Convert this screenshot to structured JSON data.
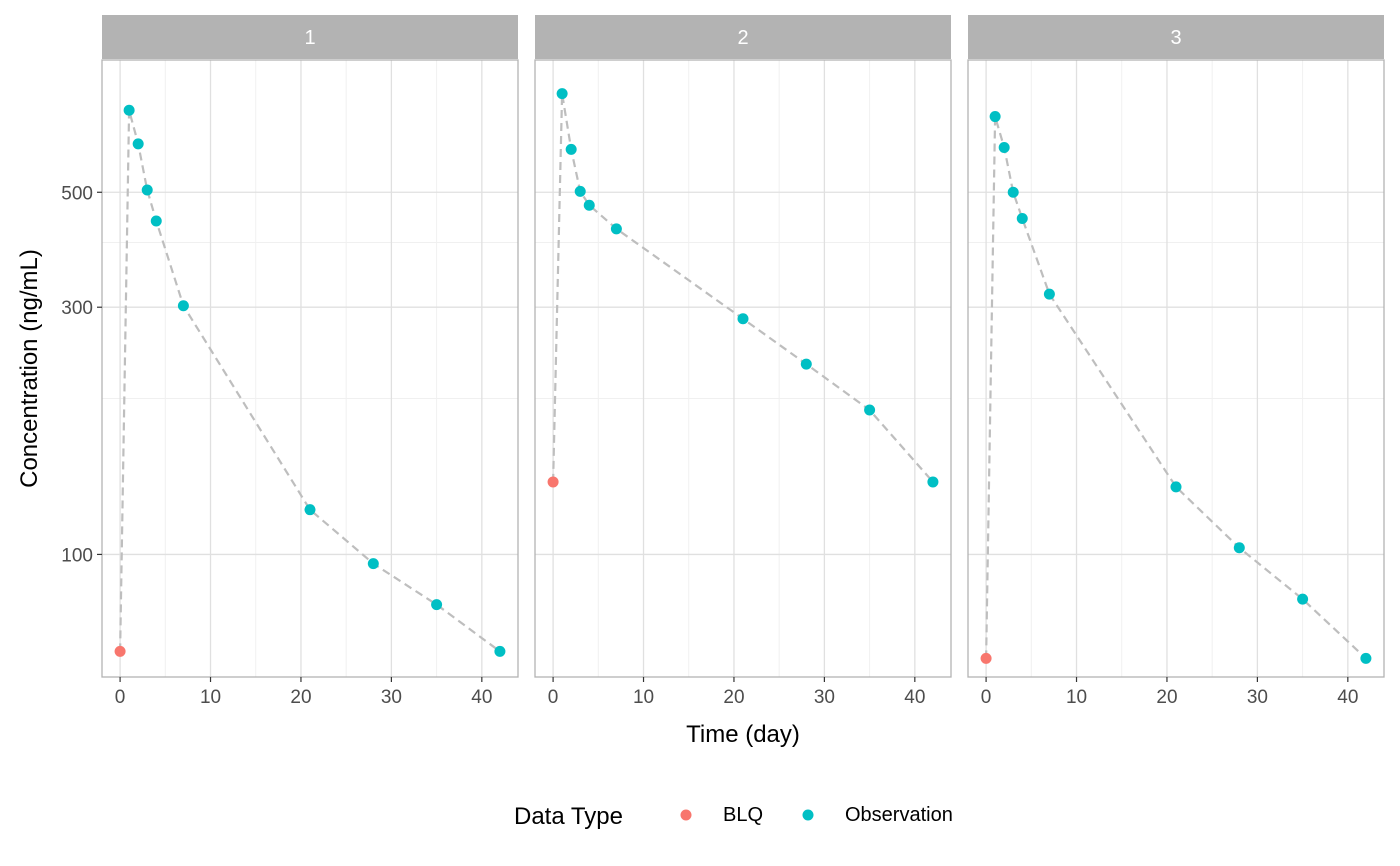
{
  "chart_data": {
    "type": "scatter",
    "xlabel": "Time (day)",
    "ylabel": "Concentration (ng/mL)",
    "y_scale": "log10",
    "xlim": [
      -2,
      44
    ],
    "ylim": [
      58,
      900
    ],
    "x_ticks": [
      0,
      10,
      20,
      30,
      40
    ],
    "y_ticks": [
      100,
      300,
      500
    ],
    "grid": true,
    "legend": {
      "title": "Data Type",
      "position": "bottom",
      "entries": [
        {
          "name": "BLQ",
          "color": "#F8766D"
        },
        {
          "name": "Observation",
          "color": "#00BFC4"
        }
      ]
    },
    "line_color": "#BEBEBE",
    "line_style": "dashed",
    "panels": [
      {
        "label": "1",
        "x": [
          0,
          1,
          2,
          3,
          4,
          7,
          21,
          28,
          35,
          42
        ],
        "y": [
          65,
          720,
          620,
          505,
          440,
          302,
          122,
          96,
          80,
          65
        ],
        "type": [
          "BLQ",
          "Observation",
          "Observation",
          "Observation",
          "Observation",
          "Observation",
          "Observation",
          "Observation",
          "Observation",
          "Observation"
        ]
      },
      {
        "label": "2",
        "x": [
          0,
          1,
          2,
          3,
          4,
          7,
          21,
          28,
          35,
          42
        ],
        "y": [
          138,
          775,
          605,
          502,
          472,
          425,
          285,
          233,
          190,
          138
        ],
        "type": [
          "BLQ",
          "Observation",
          "Observation",
          "Observation",
          "Observation",
          "Observation",
          "Observation",
          "Observation",
          "Observation",
          "Observation"
        ]
      },
      {
        "label": "3",
        "x": [
          0,
          1,
          2,
          3,
          4,
          7,
          21,
          28,
          35,
          42
        ],
        "y": [
          63,
          700,
          610,
          500,
          445,
          318,
          135,
          103,
          82,
          63
        ],
        "type": [
          "BLQ",
          "Observation",
          "Observation",
          "Observation",
          "Observation",
          "Observation",
          "Observation",
          "Observation",
          "Observation",
          "Observation"
        ]
      }
    ]
  }
}
